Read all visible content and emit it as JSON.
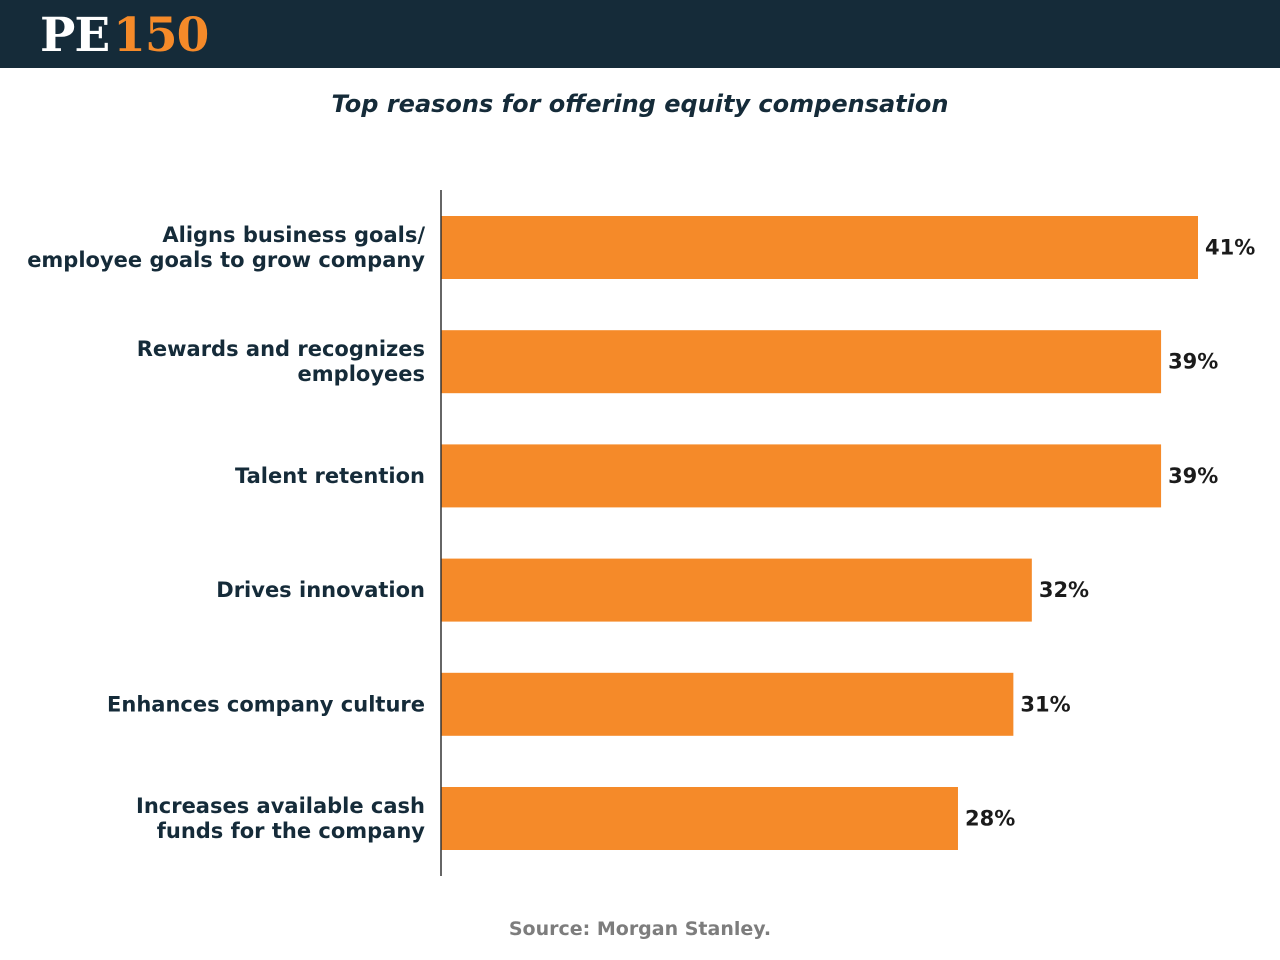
{
  "header": {
    "logo_pe": "PE",
    "logo_num": "150"
  },
  "colors": {
    "header_bg": "#152b39",
    "accent": "#f58a29",
    "bar": "#f58a29",
    "text_dark": "#152b39",
    "source_text": "#7d7d7d"
  },
  "source": "Source: Morgan Stanley.",
  "chart_data": {
    "type": "bar",
    "orientation": "horizontal",
    "title": "Top reasons for offering equity compensation",
    "categories": [
      [
        "Aligns business goals/",
        "employee goals to grow company"
      ],
      [
        "Rewards and recognizes",
        "employees"
      ],
      [
        "Talent retention"
      ],
      [
        "Drives innovation"
      ],
      [
        "Enhances company culture"
      ],
      [
        "Increases available cash",
        "funds for the company"
      ]
    ],
    "values": [
      41,
      39,
      39,
      32,
      31,
      28
    ],
    "value_labels": [
      "41%",
      "39%",
      "39%",
      "32%",
      "31%",
      "28%"
    ],
    "unit": "%",
    "xlim": [
      0,
      45
    ],
    "grid": false,
    "legend": "none"
  }
}
